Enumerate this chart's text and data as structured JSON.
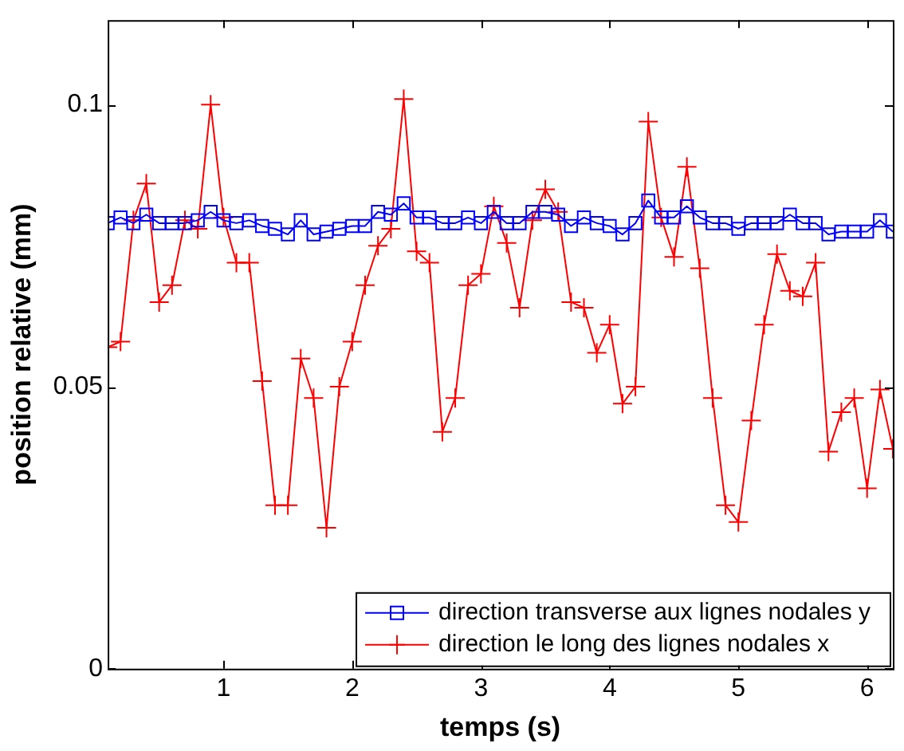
{
  "chart_data": {
    "type": "line",
    "xlabel": "temps (s)",
    "ylabel": "position relative (mm)",
    "x": [
      0.1,
      0.2,
      0.3,
      0.4,
      0.5,
      0.6,
      0.7,
      0.8,
      0.9,
      1.0,
      1.1,
      1.2,
      1.3,
      1.4,
      1.5,
      1.6,
      1.7,
      1.8,
      1.9,
      2.0,
      2.1,
      2.2,
      2.3,
      2.4,
      2.5,
      2.6,
      2.7,
      2.8,
      2.9,
      3.0,
      3.1,
      3.2,
      3.3,
      3.4,
      3.5,
      3.6,
      3.7,
      3.8,
      3.9,
      4.0,
      4.1,
      4.2,
      4.3,
      4.4,
      4.5,
      4.6,
      4.7,
      4.8,
      4.9,
      5.0,
      5.1,
      5.2,
      5.3,
      5.4,
      5.5,
      5.6,
      5.7,
      5.8,
      5.9,
      6.0,
      6.1,
      6.2
    ],
    "series": [
      {
        "name": "direction transverse aux lignes nodales y",
        "color": "#0000ff",
        "marker": "square",
        "values": [
          0.079,
          0.08,
          0.079,
          0.0805,
          0.079,
          0.079,
          0.079,
          0.0795,
          0.081,
          0.0795,
          0.079,
          0.0795,
          0.0785,
          0.078,
          0.077,
          0.0795,
          0.077,
          0.0775,
          0.078,
          0.0785,
          0.0785,
          0.081,
          0.0805,
          0.0825,
          0.08,
          0.08,
          0.079,
          0.079,
          0.08,
          0.079,
          0.081,
          0.079,
          0.079,
          0.081,
          0.081,
          0.0805,
          0.0785,
          0.08,
          0.079,
          0.0785,
          0.077,
          0.079,
          0.083,
          0.08,
          0.08,
          0.082,
          0.08,
          0.079,
          0.079,
          0.078,
          0.079,
          0.079,
          0.079,
          0.0805,
          0.079,
          0.079,
          0.077,
          0.0775,
          0.0775,
          0.0775,
          0.0795,
          0.0775
        ]
      },
      {
        "name": "direction le long des lignes nodales x",
        "color": "#ff0000",
        "marker": "cross",
        "values": [
          0.057,
          0.058,
          0.0795,
          0.086,
          0.065,
          0.068,
          0.0795,
          0.078,
          0.1,
          0.08,
          0.072,
          0.072,
          0.051,
          0.029,
          0.029,
          0.055,
          0.048,
          0.025,
          0.05,
          0.058,
          0.068,
          0.075,
          0.078,
          0.101,
          0.074,
          0.072,
          0.042,
          0.048,
          0.068,
          0.07,
          0.082,
          0.0755,
          0.064,
          0.0795,
          0.085,
          0.081,
          0.065,
          0.064,
          0.056,
          0.061,
          0.047,
          0.05,
          0.097,
          0.08,
          0.073,
          0.089,
          0.071,
          0.048,
          0.029,
          0.026,
          0.044,
          0.061,
          0.0735,
          0.067,
          0.066,
          0.072,
          0.0385,
          0.0455,
          0.048,
          0.032,
          0.0495,
          0.039
        ]
      }
    ],
    "xlim": [
      0.1,
      6.2
    ],
    "xticks": [
      1,
      2,
      3,
      4,
      5,
      6
    ],
    "ylim": [
      0,
      0.115
    ],
    "yticks": [
      0,
      0.05,
      0.1
    ],
    "legend": "bottom right",
    "grid": false,
    "line_style": "solid"
  }
}
